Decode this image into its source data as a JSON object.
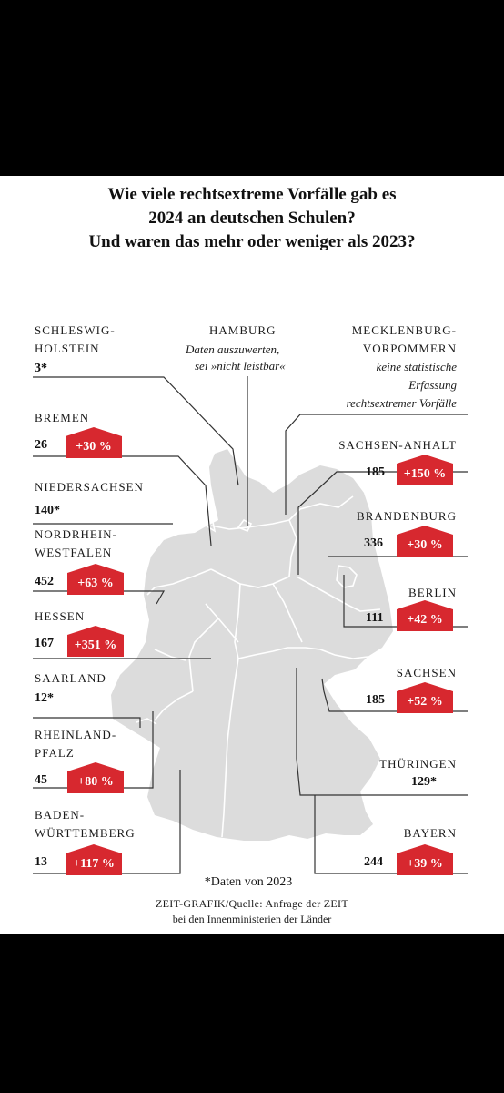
{
  "title": {
    "line1": "Wie viele rechtsextreme Vorfälle gab es",
    "line2": "2024 an deutschen Schulen?",
    "line3": "Und waren das mehr oder weniger als 2023?"
  },
  "states": {
    "schleswig_holstein": {
      "name1": "SCHLESWIG-",
      "name2": "HOLSTEIN",
      "value": "3*"
    },
    "hamburg": {
      "name": "HAMBURG",
      "note1": "Daten auszuwerten,",
      "note2": "sei »nicht leistbar«"
    },
    "mecklenburg": {
      "name1": "MECKLENBURG-",
      "name2": "VORPOMMERN",
      "note1": "keine statistische",
      "note2": "Erfassung",
      "note3": "rechtsextremer Vorfälle"
    },
    "bremen": {
      "name": "BREMEN",
      "value": "26",
      "change": "+30 %"
    },
    "sachsen_anhalt": {
      "name": "SACHSEN-ANHALT",
      "value": "185",
      "change": "+150 %"
    },
    "niedersachsen": {
      "name": "NIEDERSACHSEN",
      "value": "140*"
    },
    "brandenburg": {
      "name": "BRANDENBURG",
      "value": "336",
      "change": "+30 %"
    },
    "nrw": {
      "name1": "NORDRHEIN-",
      "name2": "WESTFALEN",
      "value": "452",
      "change": "+63 %"
    },
    "berlin": {
      "name": "BERLIN",
      "value": "111",
      "change": "+42 %"
    },
    "hessen": {
      "name": "HESSEN",
      "value": "167",
      "change": "+351 %"
    },
    "saarland": {
      "name": "SAARLAND",
      "value": "12*"
    },
    "sachsen": {
      "name": "SACHSEN",
      "value": "185",
      "change": "+52 %"
    },
    "rheinland_pfalz": {
      "name1": "RHEINLAND-",
      "name2": "PFALZ",
      "value": "45",
      "change": "+80 %"
    },
    "thueringen": {
      "name": "THÜRINGEN",
      "value": "129*"
    },
    "bw": {
      "name1": "BADEN-",
      "name2": "WÜRTTEMBERG",
      "value": "13",
      "change": "+117 %"
    },
    "bayern": {
      "name": "BAYERN",
      "value": "244",
      "change": "+39 %"
    }
  },
  "footnote": "*Daten von 2023",
  "source1": "ZEIT-GRAFIK/Quelle: Anfrage der ZEIT",
  "source2": "bei den Innenministerien der Länder",
  "colors": {
    "badge": "#d7282f",
    "land": "#dcdcdc",
    "border": "#ffffff",
    "leader": "#333333"
  }
}
